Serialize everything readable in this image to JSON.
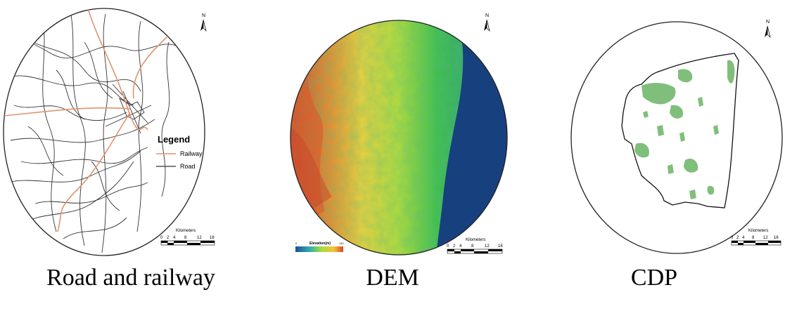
{
  "panels": [
    {
      "caption": "Road and railway",
      "north_label": "N",
      "legend": {
        "title": "Legend",
        "items": [
          {
            "label": "Railway",
            "color": "#e0946e"
          },
          {
            "label": "Road",
            "color": "#333333"
          }
        ]
      },
      "scalebar": {
        "title": "Kilometers",
        "ticks": [
          "0",
          "2",
          "4",
          "8",
          "12",
          "16"
        ]
      }
    },
    {
      "caption": "DEM",
      "north_label": "N",
      "elevation_legend": {
        "title": "Elevation(m)",
        "min": "0",
        "max": "142"
      },
      "scalebar": {
        "title": "Kilometers",
        "ticks": [
          "0",
          "2",
          "4",
          "8",
          "12",
          "16"
        ]
      }
    },
    {
      "caption": "CDP",
      "north_label": "N",
      "scalebar": {
        "title": "Kilometers",
        "ticks": [
          "0",
          "2",
          "4",
          "8",
          "12",
          "16"
        ]
      }
    }
  ],
  "colors": {
    "railway": "#e0946e",
    "road": "#333333",
    "sea": "#17407e",
    "green_patch": "#7fbf7b"
  }
}
